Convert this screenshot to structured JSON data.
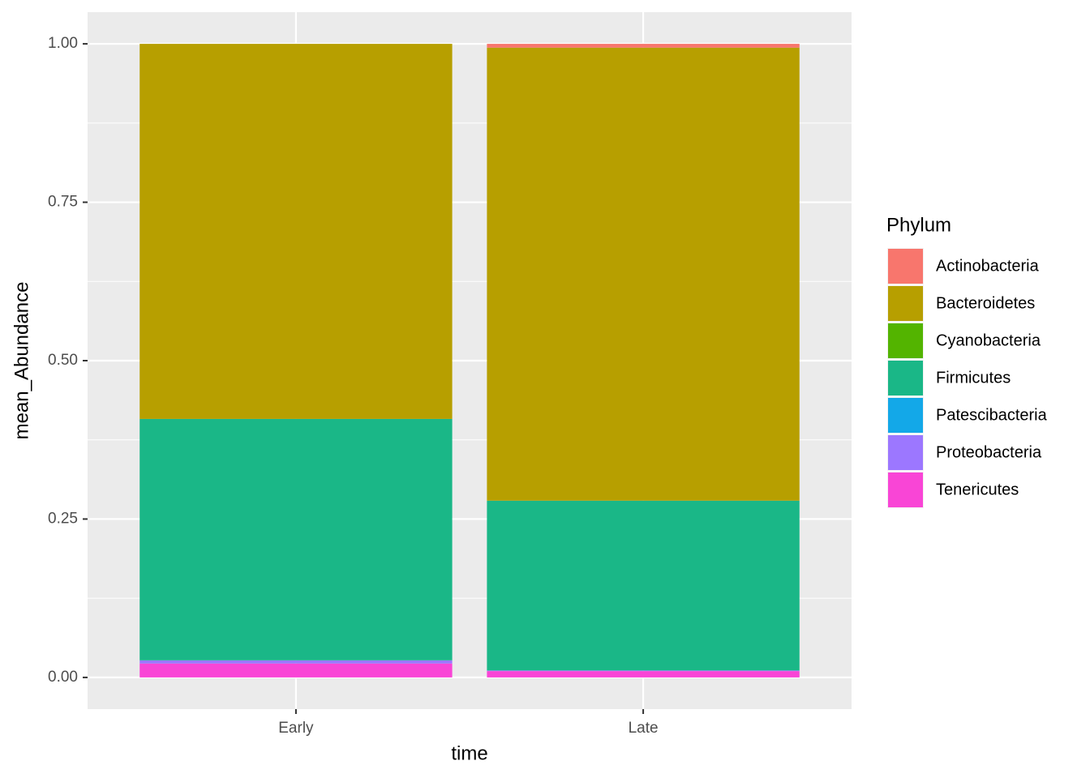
{
  "chart_data": {
    "type": "stacked-bar",
    "x_label": "time",
    "y_label": "mean_Abundance",
    "legend_title": "Phylum",
    "categories": [
      "Early",
      "Late"
    ],
    "series": [
      {
        "name": "Actinobacteria",
        "color": "#F8766D",
        "values": [
          0,
          0.006
        ]
      },
      {
        "name": "Bacteroidetes",
        "color": "#B79F00",
        "values": [
          0.592,
          0.715
        ]
      },
      {
        "name": "Cyanobacteria",
        "color": "#53B400",
        "values": [
          0,
          0
        ]
      },
      {
        "name": "Firmicutes",
        "color": "#1AB787",
        "values": [
          0.381,
          0.268
        ]
      },
      {
        "name": "Patescibacteria",
        "color": "#13A8E8",
        "values": [
          0,
          0
        ]
      },
      {
        "name": "Proteobacteria",
        "color": "#9C77FF",
        "values": [
          0.005,
          0.001
        ]
      },
      {
        "name": "Tenericutes",
        "color": "#F945D6",
        "values": [
          0.022,
          0.01
        ]
      }
    ],
    "ylim": [
      -0.05,
      1.05
    ],
    "yticks": [
      {
        "value": 0,
        "label": "0.00"
      },
      {
        "value": 0.25,
        "label": "0.25"
      },
      {
        "value": 0.5,
        "label": "0.50"
      },
      {
        "value": 0.75,
        "label": "0.75"
      },
      {
        "value": 1,
        "label": "1.00"
      }
    ],
    "grid": true,
    "legend": "right"
  }
}
